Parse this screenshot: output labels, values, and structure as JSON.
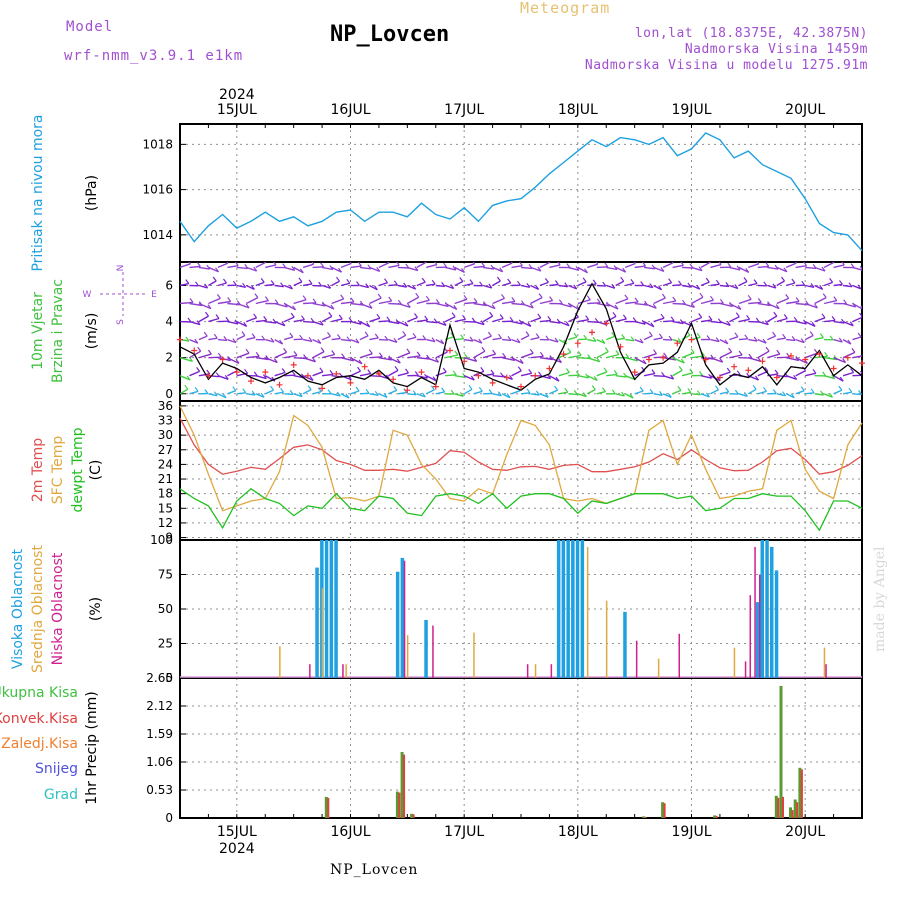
{
  "header": {
    "model_label": "Model",
    "model_name": "wrf-nmm_v3.9.1 e1km",
    "station_title": "NP_Lovcen",
    "product_title": "Meteogram",
    "coords": "lon,lat (18.8375E, 42.3875N)",
    "elevation": "Nadmorska Visina 1459m",
    "model_elevation": "Nadmorska Visina u modelu 1275.91m"
  },
  "footer": {
    "station": "NP_Lovcen",
    "watermark": "made by Angel"
  },
  "colors": {
    "pressure": "#1fa0e0",
    "wind_speed": "#000000",
    "gust_marker": "#f03030",
    "temp_2m": "#e05050",
    "temp_sfc": "#e0a840",
    "dewpoint": "#20c020",
    "cloud_high": "#1fa0e0",
    "cloud_mid": "#e0a840",
    "cloud_low": "#d02090",
    "precip_total": "#40c040",
    "precip_conv": "#e04040",
    "precip_frozen": "#f08030",
    "precip_snow": "#5050e0",
    "precip_graupel": "#30c0c0"
  },
  "chart_data": {
    "type": "meteogram",
    "time": {
      "year_label": "2024",
      "day_labels": [
        "15JUL",
        "16JUL",
        "17JUL",
        "18JUL",
        "19JUL",
        "20JUL"
      ],
      "start_hour": 0,
      "end_hour": 144,
      "day_ticks_hours": [
        12,
        36,
        60,
        84,
        108,
        132
      ],
      "hours": [
        0,
        3,
        6,
        9,
        12,
        15,
        18,
        21,
        24,
        27,
        30,
        33,
        36,
        39,
        42,
        45,
        48,
        51,
        54,
        57,
        60,
        63,
        66,
        69,
        72,
        75,
        78,
        81,
        84,
        87,
        90,
        93,
        96,
        99,
        102,
        105,
        108,
        111,
        114,
        117,
        120,
        123,
        126,
        129,
        132,
        135,
        138,
        141,
        144
      ]
    },
    "panels": [
      {
        "id": "pressure",
        "ylabel_lines": [
          "Pritisak na nivou mora"
        ],
        "unit": "(hPa)",
        "ylim": [
          1012.8,
          1018.9
        ],
        "yticks": [
          1014,
          1016,
          1018
        ],
        "series": [
          {
            "values": [
              1014.6,
              1013.7,
              1014.4,
              1014.9,
              1014.3,
              1014.6,
              1015.0,
              1014.6,
              1014.8,
              1014.4,
              1014.6,
              1015.0,
              1015.1,
              1014.6,
              1015.0,
              1015.0,
              1014.8,
              1015.4,
              1014.9,
              1014.7,
              1015.2,
              1014.6,
              1015.3,
              1015.5,
              1015.6,
              1016.1,
              1016.7,
              1017.2,
              1017.7,
              1018.2,
              1017.9,
              1018.3,
              1018.2,
              1018.0,
              1018.3,
              1017.5,
              1017.8,
              1018.5,
              1018.2,
              1017.4,
              1017.7,
              1017.1,
              1016.8,
              1016.5,
              1015.6,
              1014.5,
              1014.1,
              1014.0,
              1013.3
            ]
          }
        ]
      },
      {
        "id": "wind",
        "ylabel_lines": [
          "10m Vjetar",
          "Brzina i Pravac"
        ],
        "unit": "(m/s)",
        "direction_legend": [
          "N",
          "W",
          "E",
          "S"
        ],
        "ylim": [
          -0.4,
          7.3
        ],
        "yticks": [
          0,
          2,
          4,
          6
        ],
        "barb_levels": [
          0,
          1,
          2,
          3,
          4,
          5,
          6,
          7
        ],
        "series": [
          {
            "name": "speed",
            "values": [
              2.6,
              2.2,
              0.8,
              1.7,
              1.4,
              0.9,
              0.6,
              0.9,
              1.3,
              0.7,
              0.5,
              0.9,
              1.0,
              0.8,
              1.3,
              0.6,
              0.4,
              0.9,
              0.5,
              3.8,
              1.4,
              1.2,
              0.8,
              0.5,
              0.2,
              0.8,
              1.1,
              2.6,
              4.6,
              6.1,
              4.7,
              2.3,
              0.8,
              1.6,
              1.7,
              2.3,
              3.9,
              1.6,
              0.5,
              1.1,
              0.9,
              1.5,
              0.5,
              1.5,
              1.4,
              2.4,
              1.0,
              1.6,
              1.0
            ]
          },
          {
            "name": "gust",
            "values": [
              3.0,
              2.4,
              1.0,
              1.9,
              1.2,
              0.7,
              1.2,
              0.5,
              1.6,
              1.0,
              0.3,
              1.1,
              0.6,
              1.5,
              1.1,
              0.8,
              0.2,
              1.2,
              0.4,
              2.4,
              1.8,
              1.0,
              0.6,
              0.9,
              0.4,
              1.0,
              1.4,
              2.2,
              2.8,
              3.4,
              3.9,
              2.6,
              1.2,
              1.9,
              2.0,
              2.8,
              3.0,
              1.9,
              0.9,
              1.5,
              1.3,
              1.8,
              0.9,
              2.1,
              1.9,
              2.2,
              1.4,
              2.0,
              1.7
            ]
          }
        ]
      },
      {
        "id": "temperature",
        "ylabel_lines": [
          "2m Temp",
          "SFC Temp",
          "dewpt Temp"
        ],
        "unit": "(C)",
        "ylim": [
          8.5,
          37
        ],
        "yticks": [
          9,
          12,
          15,
          18,
          21,
          24,
          27,
          30,
          33,
          36
        ],
        "series": [
          {
            "name": "2m Temp",
            "values": [
              33.5,
              28.0,
              24.0,
              22.0,
              22.6,
              23.4,
              23.0,
              25.2,
              27.5,
              28.0,
              27.0,
              24.8,
              24.0,
              22.8,
              22.8,
              23.0,
              22.6,
              23.4,
              24.2,
              26.8,
              26.5,
              24.5,
              23.0,
              22.8,
              23.5,
              23.6,
              23.0,
              23.8,
              24.0,
              22.5,
              22.5,
              23.0,
              23.5,
              24.5,
              26.2,
              25.0,
              27.0,
              25.0,
              23.3,
              22.7,
              22.8,
              24.5,
              26.8,
              27.3,
              25.0,
              22.0,
              22.5,
              23.8,
              25.8
            ]
          },
          {
            "name": "SFC Temp",
            "values": [
              36.0,
              30.0,
              22.0,
              14.5,
              15.5,
              16.5,
              17.0,
              22.5,
              34.0,
              32.0,
              27.5,
              17.0,
              17.2,
              16.5,
              17.5,
              31.0,
              30.0,
              24.0,
              21.0,
              17.0,
              16.5,
              19.0,
              18.0,
              26.0,
              33.0,
              32.0,
              28.0,
              17.0,
              16.5,
              17.0,
              16.0,
              17.0,
              18.0,
              31.0,
              33.0,
              24.0,
              30.0,
              23.0,
              17.0,
              17.5,
              18.5,
              19.0,
              31.0,
              33.0,
              23.0,
              18.5,
              17.0,
              28.0,
              32.5
            ]
          },
          {
            "name": "dewpt Temp",
            "values": [
              19.0,
              17.0,
              15.5,
              11.0,
              16.5,
              19.0,
              17.0,
              16.0,
              13.5,
              15.5,
              15.0,
              18.0,
              15.0,
              14.5,
              17.5,
              17.0,
              14.0,
              13.5,
              17.5,
              18.0,
              17.5,
              16.0,
              18.0,
              15.0,
              17.5,
              18.0,
              18.0,
              17.0,
              14.0,
              16.5,
              16.0,
              17.0,
              18.0,
              18.0,
              18.0,
              17.0,
              17.5,
              14.5,
              15.0,
              17.0,
              17.0,
              18.0,
              17.5,
              17.5,
              14.5,
              10.5,
              16.5,
              16.5,
              15.0
            ]
          }
        ]
      },
      {
        "id": "clouds",
        "ylabel_lines": [
          "Visoka Oblacnost",
          "Srednja Oblacnost",
          "Niska Oblacnost"
        ],
        "unit": "(%)",
        "ylim": [
          0,
          100
        ],
        "yticks": [
          0,
          25,
          50,
          75,
          100
        ],
        "bar_hours": [
          21,
          25,
          27,
          28,
          29,
          30,
          31,
          32,
          33,
          34,
          35,
          38,
          45,
          46,
          47,
          48,
          51,
          52,
          53,
          55,
          62,
          73,
          74,
          75,
          78,
          79,
          80,
          81,
          82,
          83,
          84,
          85,
          86,
          90,
          93,
          94,
          96,
          101,
          105,
          116,
          117,
          118,
          119,
          120,
          121,
          122,
          123,
          124,
          125,
          126,
          127,
          128,
          136
        ],
        "series": [
          {
            "name": "Visoka Oblacnost",
            "values": [
              0,
              0,
              0,
              0,
              80,
              100,
              100,
              100,
              100,
              0,
              0,
              0,
              0,
              77,
              87,
              0,
              0,
              42,
              0,
              0,
              0,
              0,
              0,
              0,
              0,
              0,
              100,
              100,
              100,
              100,
              100,
              100,
              0,
              0,
              0,
              48,
              0,
              0,
              0,
              0,
              0,
              0,
              0,
              0,
              0,
              55,
              100,
              100,
              95,
              78,
              0,
              0,
              0
            ]
          },
          {
            "name": "Srednja Oblacnost",
            "values": [
              23,
              0,
              0,
              0,
              0,
              65,
              0,
              0,
              0,
              0,
              10,
              0,
              0,
              0,
              0,
              31,
              0,
              0,
              0,
              0,
              33,
              0,
              0,
              10,
              0,
              0,
              0,
              0,
              0,
              0,
              0,
              0,
              95,
              56,
              0,
              0,
              0,
              14,
              0,
              0,
              22,
              0,
              0,
              0,
              0,
              0,
              0,
              0,
              0,
              0,
              0,
              0,
              22
            ]
          },
          {
            "name": "Niska Oblacnost",
            "values": [
              0,
              0,
              10,
              0,
              0,
              0,
              0,
              0,
              0,
              10,
              0,
              0,
              0,
              0,
              85,
              0,
              0,
              0,
              38,
              0,
              0,
              10,
              0,
              0,
              10,
              0,
              0,
              0,
              0,
              0,
              0,
              0,
              0,
              0,
              0,
              0,
              27,
              0,
              32,
              0,
              0,
              0,
              12,
              60,
              95,
              75,
              0,
              0,
              0,
              0,
              0,
              0,
              10
            ]
          }
        ]
      },
      {
        "id": "precip",
        "ylabel_lines": [
          "1hr Precip (mm)"
        ],
        "legend": [
          "Ukupna Kisa",
          "Konvek.Kisa",
          "Zaledj.Kisa",
          "Snijeg",
          "Grad"
        ],
        "ylim": [
          0,
          2.65
        ],
        "yticks": [
          0,
          0.53,
          1.06,
          1.59,
          2.12,
          2.65
        ],
        "bar_hours": [
          31,
          46,
          47,
          49,
          98,
          102,
          113,
          126,
          127,
          129,
          130,
          131
        ],
        "series": [
          {
            "name": "Ukupna Kisa",
            "values": [
              0.4,
              0.5,
              1.25,
              0.08,
              0.03,
              0.3,
              0.05,
              0.42,
              2.5,
              0.2,
              0.35,
              0.95
            ]
          },
          {
            "name": "Konvek.Kisa",
            "values": [
              0.38,
              0.48,
              1.2,
              0.07,
              0.02,
              0.28,
              0.04,
              0.38,
              0.4,
              0.15,
              0.3,
              0.92
            ]
          }
        ]
      }
    ]
  }
}
